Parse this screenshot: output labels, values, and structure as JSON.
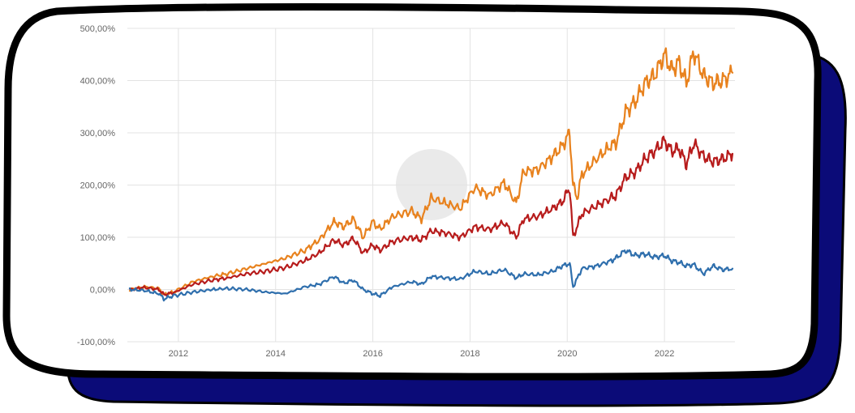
{
  "colors": {
    "card_shadow": "#0b0b78",
    "card_border": "#000000",
    "card_fill": "#ffffff",
    "grid": "#e3e3e3",
    "watermark": "#d9d9d9"
  },
  "watermark": {
    "icon": "logo-circle-icon"
  },
  "chart_data": {
    "type": "line",
    "xlim": [
      2010.95,
      2023.45
    ],
    "ylim": [
      -100,
      500
    ],
    "ytick_labels": [
      "500,00%",
      "400,00%",
      "300,00%",
      "200,00%",
      "100,00%",
      "0,00%",
      "-100,00%"
    ],
    "xtick_labels": [
      "2012",
      "2014",
      "2016",
      "2018",
      "2020",
      "2022"
    ],
    "grid": true,
    "series": [
      {
        "color": "#e8821e",
        "x": [
          2011.0,
          2011.3,
          2011.6,
          2011.7,
          2011.9,
          2012.3,
          2012.7,
          2013.0,
          2013.4,
          2013.8,
          2014.2,
          2014.6,
          2014.9,
          2015.2,
          2015.4,
          2015.6,
          2015.8,
          2016.0,
          2016.15,
          2016.4,
          2016.8,
          2017.0,
          2017.2,
          2017.5,
          2017.8,
          2018.1,
          2018.4,
          2018.7,
          2018.95,
          2019.1,
          2019.4,
          2019.7,
          2019.9,
          2020.05,
          2020.12,
          2020.2,
          2020.3,
          2020.6,
          2020.9,
          2021.0,
          2021.2,
          2021.4,
          2021.6,
          2021.8,
          2022.0,
          2022.15,
          2022.3,
          2022.45,
          2022.6,
          2022.8,
          2023.0,
          2023.2,
          2023.4
        ],
        "y": [
          0,
          5,
          2,
          -10,
          -5,
          15,
          25,
          30,
          40,
          50,
          60,
          75,
          95,
          130,
          120,
          135,
          100,
          130,
          115,
          140,
          150,
          135,
          175,
          165,
          155,
          195,
          180,
          205,
          165,
          225,
          230,
          255,
          275,
          300,
          200,
          175,
          220,
          250,
          275,
          280,
          340,
          360,
          395,
          410,
          450,
          420,
          435,
          395,
          455,
          410,
          395,
          400,
          415
        ]
      },
      {
        "color": "#b71c1c",
        "x": [
          2011.0,
          2011.3,
          2011.6,
          2011.7,
          2011.9,
          2012.3,
          2012.7,
          2013.0,
          2013.4,
          2013.8,
          2014.2,
          2014.6,
          2014.9,
          2015.2,
          2015.4,
          2015.6,
          2015.8,
          2016.0,
          2016.15,
          2016.4,
          2016.8,
          2017.0,
          2017.2,
          2017.5,
          2017.8,
          2018.1,
          2018.4,
          2018.7,
          2018.95,
          2019.1,
          2019.4,
          2019.7,
          2019.9,
          2020.05,
          2020.12,
          2020.2,
          2020.3,
          2020.6,
          2020.9,
          2021.0,
          2021.2,
          2021.4,
          2021.6,
          2021.8,
          2022.0,
          2022.15,
          2022.3,
          2022.45,
          2022.6,
          2022.8,
          2023.0,
          2023.2,
          2023.4
        ],
        "y": [
          0,
          4,
          0,
          -10,
          -6,
          10,
          18,
          22,
          30,
          35,
          42,
          55,
          70,
          95,
          85,
          98,
          70,
          85,
          75,
          92,
          100,
          95,
          112,
          108,
          100,
          120,
          115,
          128,
          100,
          135,
          140,
          155,
          168,
          195,
          100,
          120,
          145,
          160,
          175,
          180,
          215,
          225,
          250,
          265,
          285,
          265,
          270,
          240,
          280,
          255,
          245,
          250,
          260
        ]
      },
      {
        "color": "#2f6fad",
        "x": [
          2011.0,
          2011.3,
          2011.6,
          2011.7,
          2011.9,
          2012.3,
          2012.7,
          2013.0,
          2013.4,
          2013.8,
          2014.2,
          2014.6,
          2014.9,
          2015.2,
          2015.4,
          2015.6,
          2015.8,
          2016.0,
          2016.15,
          2016.4,
          2016.8,
          2017.0,
          2017.2,
          2017.5,
          2017.8,
          2018.1,
          2018.4,
          2018.7,
          2018.95,
          2019.1,
          2019.4,
          2019.7,
          2019.9,
          2020.05,
          2020.12,
          2020.2,
          2020.3,
          2020.6,
          2020.9,
          2021.0,
          2021.2,
          2021.4,
          2021.6,
          2021.8,
          2022.0,
          2022.15,
          2022.3,
          2022.45,
          2022.6,
          2022.8,
          2023.0,
          2023.2,
          2023.4
        ],
        "y": [
          0,
          -2,
          -8,
          -18,
          -12,
          -5,
          0,
          2,
          0,
          -5,
          -8,
          5,
          10,
          25,
          12,
          18,
          0,
          -8,
          -12,
          5,
          15,
          10,
          25,
          22,
          20,
          35,
          30,
          38,
          22,
          30,
          28,
          35,
          45,
          50,
          5,
          20,
          40,
          45,
          55,
          60,
          75,
          65,
          68,
          62,
          65,
          55,
          52,
          45,
          48,
          30,
          45,
          38,
          40
        ]
      }
    ]
  }
}
